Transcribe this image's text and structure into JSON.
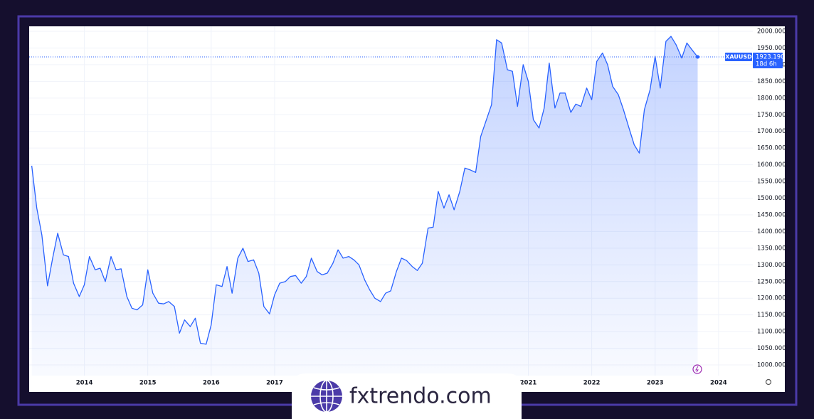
{
  "chart_data": {
    "type": "area",
    "symbol": "XAUUSD",
    "last_label": "1923.190",
    "countdown": "18d 6h",
    "brand": "fxtrendo.com",
    "series": [
      {
        "name": "XAUUSD",
        "color": "#2962ff",
        "x": [
          2013.17,
          2013.25,
          2013.33,
          2013.42,
          2013.5,
          2013.58,
          2013.67,
          2013.75,
          2013.83,
          2013.92,
          2014.0,
          2014.08,
          2014.17,
          2014.25,
          2014.33,
          2014.42,
          2014.5,
          2014.58,
          2014.67,
          2014.75,
          2014.83,
          2014.92,
          2015.0,
          2015.08,
          2015.17,
          2015.25,
          2015.33,
          2015.42,
          2015.5,
          2015.58,
          2015.67,
          2015.75,
          2015.83,
          2015.92,
          2016.0,
          2016.08,
          2016.17,
          2016.25,
          2016.33,
          2016.42,
          2016.5,
          2016.58,
          2016.67,
          2016.75,
          2016.83,
          2016.92,
          2017.0,
          2017.08,
          2017.17,
          2017.25,
          2017.33,
          2017.42,
          2017.5,
          2017.58,
          2017.67,
          2017.75,
          2017.83,
          2017.92,
          2018.0,
          2018.08,
          2018.17,
          2018.25,
          2018.33,
          2018.42,
          2018.5,
          2018.58,
          2018.67,
          2018.75,
          2018.83,
          2018.92,
          2019.0,
          2019.08,
          2019.17,
          2019.25,
          2019.33,
          2019.42,
          2019.5,
          2019.58,
          2019.67,
          2019.75,
          2019.83,
          2019.92,
          2020.0,
          2020.08,
          2020.17,
          2020.25,
          2020.33,
          2020.42,
          2020.5,
          2020.58,
          2020.67,
          2020.75,
          2020.83,
          2020.92,
          2021.0,
          2021.08,
          2021.17,
          2021.25,
          2021.33,
          2021.42,
          2021.5,
          2021.58,
          2021.67,
          2021.75,
          2021.83,
          2021.92,
          2022.0,
          2022.08,
          2022.17,
          2022.25,
          2022.33,
          2022.42,
          2022.5,
          2022.58,
          2022.67,
          2022.75,
          2022.83,
          2022.92,
          2023.0,
          2023.08,
          2023.17,
          2023.25,
          2023.33,
          2023.42,
          2023.5,
          2023.58,
          2023.67
        ],
        "values": [
          1597,
          1470,
          1390,
          1237,
          1320,
          1395,
          1330,
          1325,
          1245,
          1205,
          1240,
          1325,
          1285,
          1290,
          1250,
          1325,
          1285,
          1288,
          1205,
          1170,
          1165,
          1180,
          1285,
          1215,
          1185,
          1183,
          1190,
          1175,
          1095,
          1135,
          1115,
          1140,
          1065,
          1062,
          1120,
          1240,
          1235,
          1295,
          1215,
          1320,
          1350,
          1310,
          1315,
          1275,
          1175,
          1153,
          1210,
          1245,
          1250,
          1265,
          1268,
          1245,
          1265,
          1320,
          1280,
          1270,
          1275,
          1305,
          1345,
          1320,
          1325,
          1315,
          1300,
          1255,
          1225,
          1200,
          1190,
          1215,
          1222,
          1280,
          1320,
          1313,
          1295,
          1283,
          1305,
          1410,
          1413,
          1520,
          1470,
          1510,
          1465,
          1520,
          1590,
          1585,
          1577,
          1685,
          1730,
          1780,
          1975,
          1965,
          1885,
          1880,
          1775,
          1900,
          1850,
          1735,
          1710,
          1770,
          1905,
          1770,
          1815,
          1815,
          1757,
          1782,
          1775,
          1830,
          1795,
          1910,
          1935,
          1900,
          1835,
          1810,
          1765,
          1715,
          1660,
          1635,
          1765,
          1825,
          1925,
          1830,
          1970,
          1985,
          1960,
          1920,
          1965,
          1945,
          1923.19
        ]
      }
    ],
    "xlim": [
      2013.13,
      2024.54
    ],
    "xticks": [
      2014,
      2015,
      2016,
      2017,
      2021,
      2022,
      2023,
      2024
    ],
    "ylim": [
      968,
      2015
    ],
    "yticks": [
      {
        "value": 1000,
        "label": "1000.000"
      },
      {
        "value": 1050,
        "label": "1050.000"
      },
      {
        "value": 1100,
        "label": "1100.000"
      },
      {
        "value": 1150,
        "label": "1150.000"
      },
      {
        "value": 1200,
        "label": "1200.000"
      },
      {
        "value": 1250,
        "label": "1250.000"
      },
      {
        "value": 1300,
        "label": "1300.000"
      },
      {
        "value": 1350,
        "label": "1350.000"
      },
      {
        "value": 1400,
        "label": "1400.000"
      },
      {
        "value": 1450,
        "label": "1450.000"
      },
      {
        "value": 1500,
        "label": "1500.000"
      },
      {
        "value": 1550,
        "label": "1550.000"
      },
      {
        "value": 1600,
        "label": "1600.000"
      },
      {
        "value": 1650,
        "label": "1650.000"
      },
      {
        "value": 1700,
        "label": "1700.000"
      },
      {
        "value": 1750,
        "label": "1750.000"
      },
      {
        "value": 1800,
        "label": "1800.000"
      },
      {
        "value": 1850,
        "label": "1850.000"
      },
      {
        "value": 1900,
        "label": "1900.000"
      },
      {
        "value": 1950,
        "label": "1950.000"
      },
      {
        "value": 2000,
        "label": "2000.000"
      }
    ],
    "grid": true
  }
}
